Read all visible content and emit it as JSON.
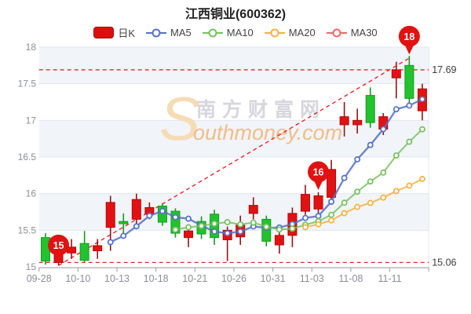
{
  "title": "江西铜业(600362)",
  "legend": {
    "items": [
      {
        "label": "日K",
        "type": "pill",
        "color": "#dc0f0f"
      },
      {
        "label": "MA5",
        "type": "line",
        "color": "#5571c4"
      },
      {
        "label": "MA10",
        "type": "line",
        "color": "#77c05e"
      },
      {
        "label": "MA20",
        "type": "line",
        "color": "#f3b13f"
      },
      {
        "label": "MA30",
        "type": "line",
        "color": "#ee6666"
      }
    ]
  },
  "watermark": {
    "symbol": "S",
    "line1": "南方财富网",
    "line2": "outhmoney.com",
    "symbol_color": "#f6dcb4",
    "line1_color": "#d6d6de",
    "line2_color": "#f0bd8a"
  },
  "colors": {
    "up_fill": "#e31212",
    "up_stroke": "#b00a0a",
    "up_wick": "#8f1616",
    "down_fill": "#22c32e",
    "down_stroke": "#149a20",
    "down_wick": "#149a20",
    "band": "#f1f4f9",
    "grid": "#e2e7ee",
    "axis": "#999999",
    "tick_text": "#8a8f99",
    "ref_red": "#e8262a",
    "ref_text": "#3c3c3c",
    "badge": "#e01212",
    "badge_text": "#ffffff"
  },
  "chart_data": {
    "type": "candlestick",
    "title": "江西铜业(600362)",
    "ylim": [
      15,
      18
    ],
    "y_ticks": [
      15,
      15.5,
      16,
      16.5,
      17,
      17.5,
      18
    ],
    "x_tick_labels": [
      "09-28",
      "10-10",
      "10-13",
      "10-18",
      "10-21",
      "10-26",
      "10-31",
      "11-03",
      "11-08",
      "11-11"
    ],
    "legend_position": "top",
    "grid": true,
    "ref_lines": [
      {
        "label": "17.69",
        "value": 17.69
      },
      {
        "label": "15.06",
        "value": 15.06
      }
    ],
    "trend_line": {
      "from_index": 1,
      "from_price": 15.02,
      "to_index": 28,
      "to_price": 17.85
    },
    "badges": [
      {
        "text": "15",
        "x_index": 1,
        "price": 15.05
      },
      {
        "text": "16",
        "x_index": 21,
        "price": 16.05
      },
      {
        "text": "18",
        "x_index": 28,
        "price": 17.9
      }
    ],
    "series": [
      {
        "name": "MA5",
        "window": 5,
        "start_index": 5
      },
      {
        "name": "MA10",
        "window": 10,
        "start_index": 10
      },
      {
        "name": "MA20",
        "window": 20,
        "start_index": 20
      }
    ],
    "candles": [
      {
        "date": "09-28",
        "open": 15.4,
        "close": 15.08,
        "high": 15.46,
        "low": 15.03
      },
      {
        "date": "09-29",
        "open": 15.06,
        "close": 15.16,
        "high": 15.2,
        "low": 15.02
      },
      {
        "date": "09-30",
        "open": 15.19,
        "close": 15.27,
        "high": 15.38,
        "low": 15.11
      },
      {
        "date": "10-10",
        "open": 15.32,
        "close": 15.09,
        "high": 15.49,
        "low": 15.06
      },
      {
        "date": "10-11",
        "open": 15.22,
        "close": 15.29,
        "high": 15.38,
        "low": 15.11
      },
      {
        "date": "10-12",
        "open": 15.54,
        "close": 15.88,
        "high": 15.97,
        "low": 15.22
      },
      {
        "date": "10-13",
        "open": 15.62,
        "close": 15.59,
        "high": 15.73,
        "low": 15.43
      },
      {
        "date": "10-14",
        "open": 15.65,
        "close": 15.92,
        "high": 16.0,
        "low": 15.54
      },
      {
        "date": "10-17",
        "open": 15.72,
        "close": 15.81,
        "high": 15.88,
        "low": 15.65
      },
      {
        "date": "10-18",
        "open": 15.83,
        "close": 15.61,
        "high": 15.87,
        "low": 15.56
      },
      {
        "date": "10-19",
        "open": 15.76,
        "close": 15.46,
        "high": 15.8,
        "low": 15.4
      },
      {
        "date": "10-20",
        "open": 15.4,
        "close": 15.49,
        "high": 15.55,
        "low": 15.27
      },
      {
        "date": "10-21",
        "open": 15.62,
        "close": 15.45,
        "high": 15.69,
        "low": 15.38
      },
      {
        "date": "10-24",
        "open": 15.72,
        "close": 15.4,
        "high": 15.78,
        "low": 15.3
      },
      {
        "date": "10-25",
        "open": 15.37,
        "close": 15.5,
        "high": 15.55,
        "low": 15.08
      },
      {
        "date": "10-26",
        "open": 15.41,
        "close": 15.57,
        "high": 15.7,
        "low": 15.3
      },
      {
        "date": "10-27",
        "open": 15.73,
        "close": 15.84,
        "high": 15.95,
        "low": 15.65
      },
      {
        "date": "10-28",
        "open": 15.65,
        "close": 15.35,
        "high": 15.7,
        "low": 15.28
      },
      {
        "date": "10-31",
        "open": 15.3,
        "close": 15.43,
        "high": 15.49,
        "low": 15.18
      },
      {
        "date": "11-01",
        "open": 15.43,
        "close": 15.73,
        "high": 15.81,
        "low": 15.27
      },
      {
        "date": "11-02",
        "open": 15.76,
        "close": 15.99,
        "high": 16.12,
        "low": 15.71
      },
      {
        "date": "11-03",
        "open": 15.79,
        "close": 15.97,
        "high": 16.02,
        "low": 15.7
      },
      {
        "date": "11-04",
        "open": 15.95,
        "close": 16.33,
        "high": 16.46,
        "low": 15.85
      },
      {
        "date": "11-07",
        "open": 16.94,
        "close": 17.05,
        "high": 17.25,
        "low": 16.78
      },
      {
        "date": "11-08",
        "open": 16.94,
        "close": 17.0,
        "high": 17.16,
        "low": 16.82
      },
      {
        "date": "11-09",
        "open": 17.34,
        "close": 16.97,
        "high": 17.45,
        "low": 16.9
      },
      {
        "date": "11-10",
        "open": 16.88,
        "close": 17.05,
        "high": 17.1,
        "low": 16.8
      },
      {
        "date": "11-11",
        "open": 17.58,
        "close": 17.69,
        "high": 17.8,
        "low": 17.3
      },
      {
        "date": "11-14",
        "open": 17.75,
        "close": 17.3,
        "high": 17.88,
        "low": 17.21
      },
      {
        "date": "11-15",
        "open": 17.13,
        "close": 17.43,
        "high": 17.5,
        "low": 17.0
      }
    ]
  }
}
